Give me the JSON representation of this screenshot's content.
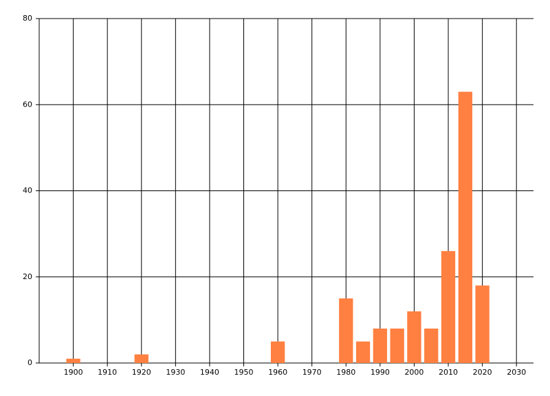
{
  "chart_data": {
    "type": "bar",
    "x": [
      1900,
      1920,
      1960,
      1980,
      1985,
      1990,
      1995,
      2000,
      2005,
      2010,
      2015,
      2020
    ],
    "values": [
      1,
      2,
      5,
      15,
      5,
      8,
      8,
      12,
      8,
      26,
      63,
      18
    ],
    "color": "#ff8040",
    "xlim": [
      1890,
      2035
    ],
    "xticks": [
      1900,
      1910,
      1920,
      1930,
      1940,
      1950,
      1960,
      1970,
      1980,
      1990,
      2000,
      2010,
      2020,
      2030
    ],
    "ylim": [
      0,
      80
    ],
    "yticks": [
      0,
      20,
      40,
      60,
      80
    ],
    "grid": true
  }
}
